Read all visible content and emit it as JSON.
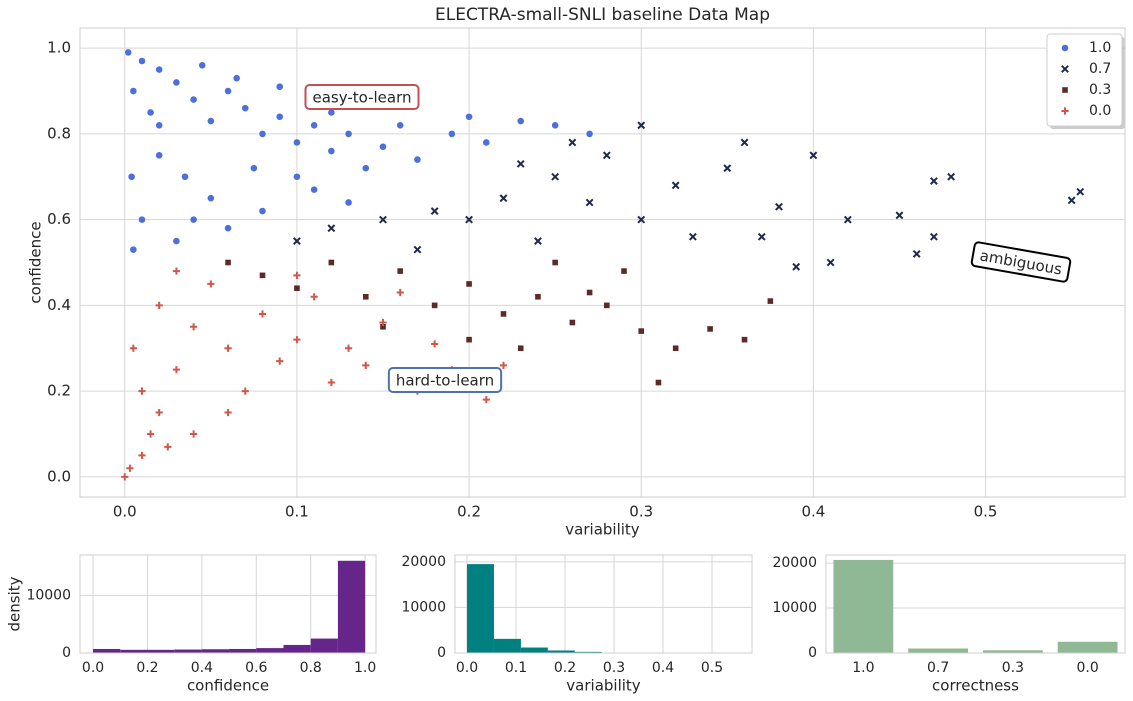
{
  "chart_data": [
    {
      "type": "scatter",
      "title": "ELECTRA-small-SNLI baseline Data Map",
      "xlabel": "variability",
      "ylabel": "confidence",
      "xlim": [
        -0.026,
        0.581
      ],
      "ylim": [
        -0.047,
        1.047
      ],
      "xticks": [
        {
          "value": 0,
          "label": "0.0"
        },
        0.1,
        0.2,
        0.3,
        0.4,
        0.5
      ],
      "yticks": [
        {
          "value": 0,
          "label": "0.0"
        },
        0.2,
        0.4,
        0.6,
        0.8,
        {
          "value": 1,
          "label": "1.0"
        }
      ],
      "grid": true,
      "legend": "upper right",
      "series": [
        {
          "name": "1.0",
          "color": "#4c6fdc",
          "marker": "circle",
          "x": [
            0.002,
            0.01,
            0.02,
            0.005,
            0.03,
            0.04,
            0.015,
            0.05,
            0.06,
            0.07,
            0.08,
            0.09,
            0.1,
            0.11,
            0.12,
            0.13,
            0.02,
            0.035,
            0.05,
            0.01,
            0.03,
            0.06,
            0.08,
            0.1,
            0.14,
            0.15,
            0.17,
            0.19,
            0.21,
            0.23,
            0.25,
            0.27,
            0.004,
            0.02,
            0.045,
            0.065,
            0.09,
            0.12,
            0.16,
            0.2,
            0.005,
            0.04,
            0.075,
            0.11,
            0.13
          ],
          "values": [
            0.99,
            0.97,
            0.95,
            0.9,
            0.92,
            0.88,
            0.85,
            0.83,
            0.9,
            0.86,
            0.8,
            0.84,
            0.78,
            0.82,
            0.76,
            0.8,
            0.75,
            0.7,
            0.65,
            0.6,
            0.55,
            0.58,
            0.62,
            0.7,
            0.72,
            0.77,
            0.74,
            0.8,
            0.78,
            0.83,
            0.82,
            0.8,
            0.7,
            0.82,
            0.96,
            0.93,
            0.91,
            0.85,
            0.82,
            0.84,
            0.53,
            0.6,
            0.72,
            0.67,
            0.64
          ]
        },
        {
          "name": "0.7",
          "color": "#1f2a4d",
          "marker": "x",
          "x": [
            0.1,
            0.12,
            0.15,
            0.18,
            0.2,
            0.22,
            0.25,
            0.26,
            0.28,
            0.3,
            0.32,
            0.35,
            0.36,
            0.38,
            0.4,
            0.42,
            0.45,
            0.47,
            0.48,
            0.55,
            0.555,
            0.41,
            0.39,
            0.33,
            0.3,
            0.24,
            0.27,
            0.46,
            0.47,
            0.37,
            0.17,
            0.23
          ],
          "values": [
            0.55,
            0.58,
            0.6,
            0.62,
            0.6,
            0.65,
            0.7,
            0.78,
            0.75,
            0.82,
            0.68,
            0.72,
            0.78,
            0.63,
            0.75,
            0.6,
            0.61,
            0.69,
            0.7,
            0.645,
            0.665,
            0.5,
            0.49,
            0.56,
            0.6,
            0.55,
            0.64,
            0.52,
            0.56,
            0.56,
            0.53,
            0.73
          ]
        },
        {
          "name": "0.3",
          "color": "#5e2a26",
          "marker": "square",
          "x": [
            0.06,
            0.08,
            0.1,
            0.12,
            0.14,
            0.16,
            0.18,
            0.2,
            0.22,
            0.24,
            0.26,
            0.28,
            0.3,
            0.31,
            0.32,
            0.34,
            0.36,
            0.375,
            0.29,
            0.25,
            0.15,
            0.2,
            0.23,
            0.27
          ],
          "values": [
            0.5,
            0.47,
            0.44,
            0.5,
            0.42,
            0.48,
            0.4,
            0.45,
            0.38,
            0.42,
            0.36,
            0.4,
            0.34,
            0.22,
            0.3,
            0.345,
            0.32,
            0.41,
            0.48,
            0.5,
            0.35,
            0.32,
            0.3,
            0.43
          ]
        },
        {
          "name": "0.0",
          "color": "#d0584a",
          "marker": "plus",
          "x": [
            0.0,
            0.003,
            0.01,
            0.015,
            0.02,
            0.01,
            0.03,
            0.005,
            0.04,
            0.02,
            0.05,
            0.03,
            0.06,
            0.07,
            0.08,
            0.09,
            0.1,
            0.11,
            0.12,
            0.13,
            0.14,
            0.15,
            0.17,
            0.19,
            0.21,
            0.22,
            0.04,
            0.06,
            0.025,
            0.1,
            0.16,
            0.18
          ],
          "values": [
            0.0,
            0.02,
            0.05,
            0.1,
            0.15,
            0.2,
            0.25,
            0.3,
            0.35,
            0.4,
            0.45,
            0.48,
            0.3,
            0.2,
            0.38,
            0.27,
            0.32,
            0.42,
            0.22,
            0.3,
            0.26,
            0.36,
            0.2,
            0.25,
            0.18,
            0.26,
            0.1,
            0.15,
            0.07,
            0.47,
            0.43,
            0.31
          ]
        }
      ],
      "annotations": [
        {
          "text": "easy-to-learn",
          "edgecolor": "#c44e52"
        },
        {
          "text": "ambiguous",
          "edgecolor": "#000000"
        },
        {
          "text": "hard-to-learn",
          "edgecolor": "#4c72b0"
        }
      ]
    },
    {
      "type": "histogram",
      "xlabel": "confidence",
      "ylabel": "density",
      "color": "#65258a",
      "bins": [
        0,
        0.1,
        0.2,
        0.3,
        0.4,
        0.5,
        0.6,
        0.7,
        0.8,
        0.9,
        1
      ],
      "values": [
        700,
        550,
        550,
        600,
        650,
        700,
        850,
        1400,
        2500,
        16000
      ],
      "xlim": [
        -0.048,
        1.04
      ],
      "ylim": [
        0,
        17000
      ],
      "xticks": [
        {
          "value": 0,
          "label": "0.0"
        },
        0.2,
        0.4,
        0.6,
        0.8,
        {
          "value": 1,
          "label": "1.0"
        }
      ],
      "yticks": [
        0,
        10000
      ],
      "grid": true
    },
    {
      "type": "histogram",
      "xlabel": "variability",
      "color": "#008080",
      "bins": [
        0,
        0.055,
        0.11,
        0.165,
        0.22,
        0.275,
        0.33,
        0.385,
        0.44,
        0.495,
        0.55
      ],
      "values": [
        19500,
        3100,
        1200,
        550,
        250,
        100,
        50,
        30,
        15,
        10
      ],
      "xlim": [
        -0.0245,
        0.5816
      ],
      "ylim": [
        0,
        21500
      ],
      "xticks": [
        {
          "value": 0,
          "label": "0.0"
        },
        0.1,
        0.2,
        0.3,
        0.4,
        0.5
      ],
      "yticks": [
        0,
        10000,
        20000
      ],
      "grid": true
    },
    {
      "type": "bar",
      "xlabel": "correctness",
      "color": "#8fb994",
      "categories": [
        "1.0",
        "0.7",
        "0.3",
        "0.0"
      ],
      "values": [
        20700,
        1000,
        600,
        2500
      ],
      "ylim": [
        0,
        21800
      ],
      "yticks": [
        0,
        10000,
        20000
      ],
      "grid": true
    }
  ]
}
